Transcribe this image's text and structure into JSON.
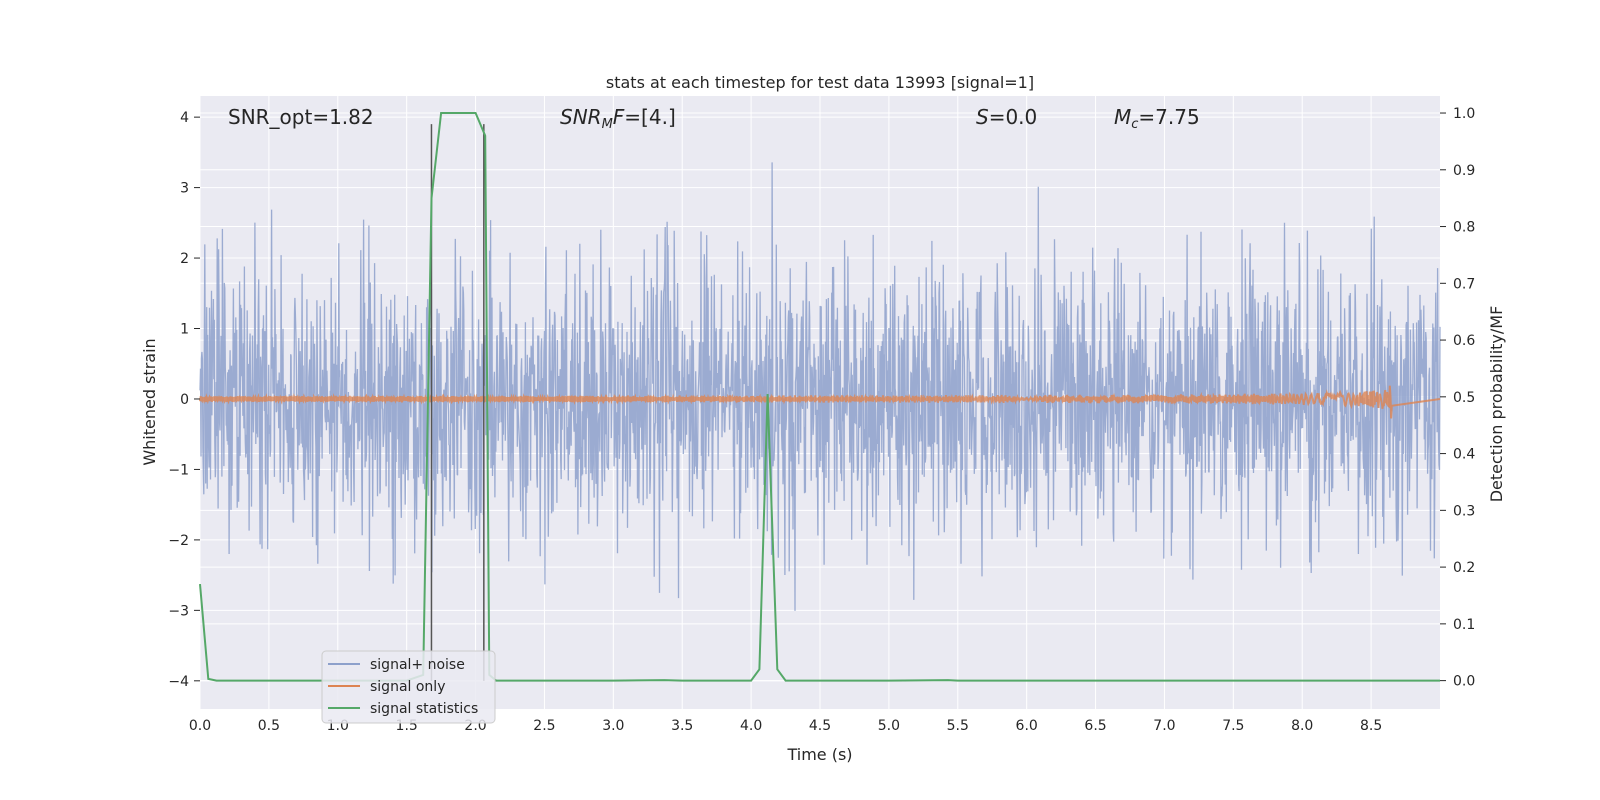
{
  "chart_data": {
    "type": "line",
    "title": "stats at each timestep for test data 13993 [signal=1]",
    "xlabel": "Time (s)",
    "ylabel_left": "Whitened strain",
    "ylabel_right": "Detection probability/MF",
    "xlim": [
      0,
      9
    ],
    "ylim_left": [
      -4.4,
      4.3
    ],
    "ylim_right": [
      -0.05,
      1.03
    ],
    "grid": true,
    "x_ticks": [
      "0.0",
      "0.5",
      "1.0",
      "1.5",
      "2.0",
      "2.5",
      "3.0",
      "3.5",
      "4.0",
      "4.5",
      "5.0",
      "5.5",
      "6.0",
      "6.5",
      "7.0",
      "7.5",
      "8.0",
      "8.5"
    ],
    "x_tick_values": [
      0,
      0.5,
      1,
      1.5,
      2,
      2.5,
      3,
      3.5,
      4,
      4.5,
      5,
      5.5,
      6,
      6.5,
      7,
      7.5,
      8,
      8.5
    ],
    "y_left_ticks": [
      "4",
      "3",
      "2",
      "1",
      "0",
      "−1",
      "−2",
      "−3",
      "−4"
    ],
    "y_left_tick_values": [
      4,
      3,
      2,
      1,
      0,
      -1,
      -2,
      -3,
      -4
    ],
    "y_right_ticks": [
      "1.0",
      "0.9",
      "0.8",
      "0.7",
      "0.6",
      "0.5",
      "0.4",
      "0.3",
      "0.2",
      "0.1",
      "0.0"
    ],
    "y_right_tick_values": [
      1.0,
      0.9,
      0.8,
      0.7,
      0.6,
      0.5,
      0.4,
      0.3,
      0.2,
      0.1,
      0.0
    ],
    "annotations": {
      "snr_opt": "SNR_opt=1.82",
      "snr_mf_main": "SNR",
      "snr_mf_sub": "M",
      "snr_mf_rest": "F",
      "snr_mf_value": "=[4.]",
      "s_label": "S",
      "s_value": "=0.0",
      "mc_label": "M",
      "mc_sub": "c",
      "mc_value": "=7.75"
    },
    "series": [
      {
        "name": "signal+ noise",
        "color": "#8da0cb",
        "axis": "left",
        "description_values": "white Gaussian noise, amplitude envelope approx. ±1.7 typical, peaks to ±3.5",
        "approx_range": [
          -3.4,
          3.5
        ]
      },
      {
        "name": "signal only",
        "color": "#dd8452",
        "axis": "left",
        "chirp_end": 8.65,
        "chirp_peak_amplitude": 0.22
      },
      {
        "name": "signal statistics",
        "color": "#55a868",
        "axis": "right",
        "x": [
          0.0,
          0.06,
          0.12,
          0.5,
          1.0,
          1.5,
          1.62,
          1.68,
          1.75,
          2.0,
          2.07,
          2.1,
          2.15,
          2.5,
          3.0,
          3.37,
          3.5,
          4.0,
          4.06,
          4.12,
          4.19,
          4.25,
          4.5,
          5.0,
          5.43,
          5.5,
          6.0,
          7.0,
          8.0,
          9.0
        ],
        "values": [
          0.17,
          0.003,
          0.0,
          0.0,
          0.0,
          0.0,
          0.01,
          0.85,
          1.0,
          1.0,
          0.96,
          0.01,
          0.0,
          0.0,
          0.0,
          0.001,
          0.0,
          0.0,
          0.02,
          0.505,
          0.02,
          0.0,
          0.0,
          0.0,
          0.001,
          0.0,
          0.0,
          0.0,
          0.0,
          0.0
        ]
      }
    ],
    "vlines": [
      1.68,
      2.06
    ],
    "vline_color": "#555555",
    "legend": {
      "placement": "lower-left",
      "entries": [
        "signal+ noise",
        "signal only",
        "signal statistics"
      ]
    },
    "colors": {
      "axes_bg": "#eaeaf2",
      "grid": "#ffffff",
      "text": "#262626"
    }
  }
}
